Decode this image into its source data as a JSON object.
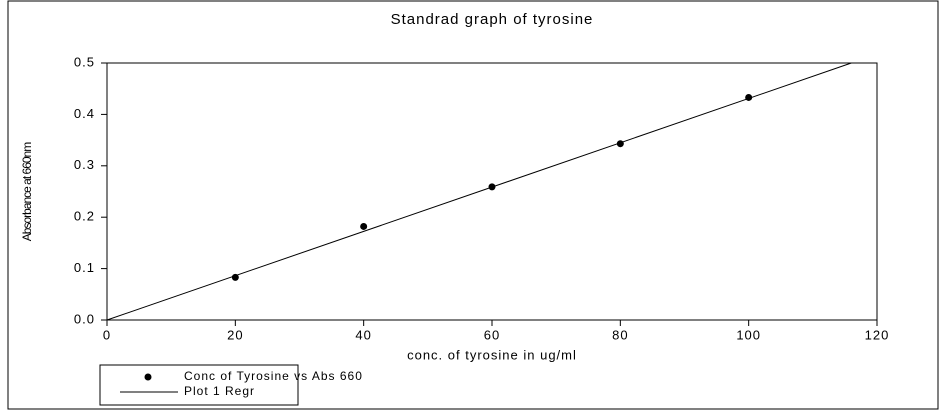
{
  "chart_data": {
    "type": "scatter",
    "title": "Standrad graph of tyrosine",
    "xlabel": "conc. of tyrosine in ug/ml",
    "ylabel": "Absorbance at 660nm",
    "xlim": [
      0,
      120
    ],
    "ylim": [
      0,
      0.5
    ],
    "xticks": [
      0,
      20,
      40,
      60,
      80,
      100,
      120
    ],
    "yticks": [
      {
        "value": 0,
        "label": "0.0"
      },
      0.1,
      0.2,
      0.3,
      0.4,
      0.5
    ],
    "series": [
      {
        "name": "Conc of Tyrosine vs Abs 660",
        "type": "scatter",
        "color": "#000000",
        "x": [
          20,
          40,
          60,
          80,
          100
        ],
        "values": [
          0.083,
          0.182,
          0.259,
          0.343,
          0.433
        ]
      },
      {
        "name": "Plot 1 Regr",
        "type": "line",
        "color": "#000000",
        "x": [
          0,
          116
        ],
        "values": [
          0,
          0.5
        ]
      }
    ]
  }
}
